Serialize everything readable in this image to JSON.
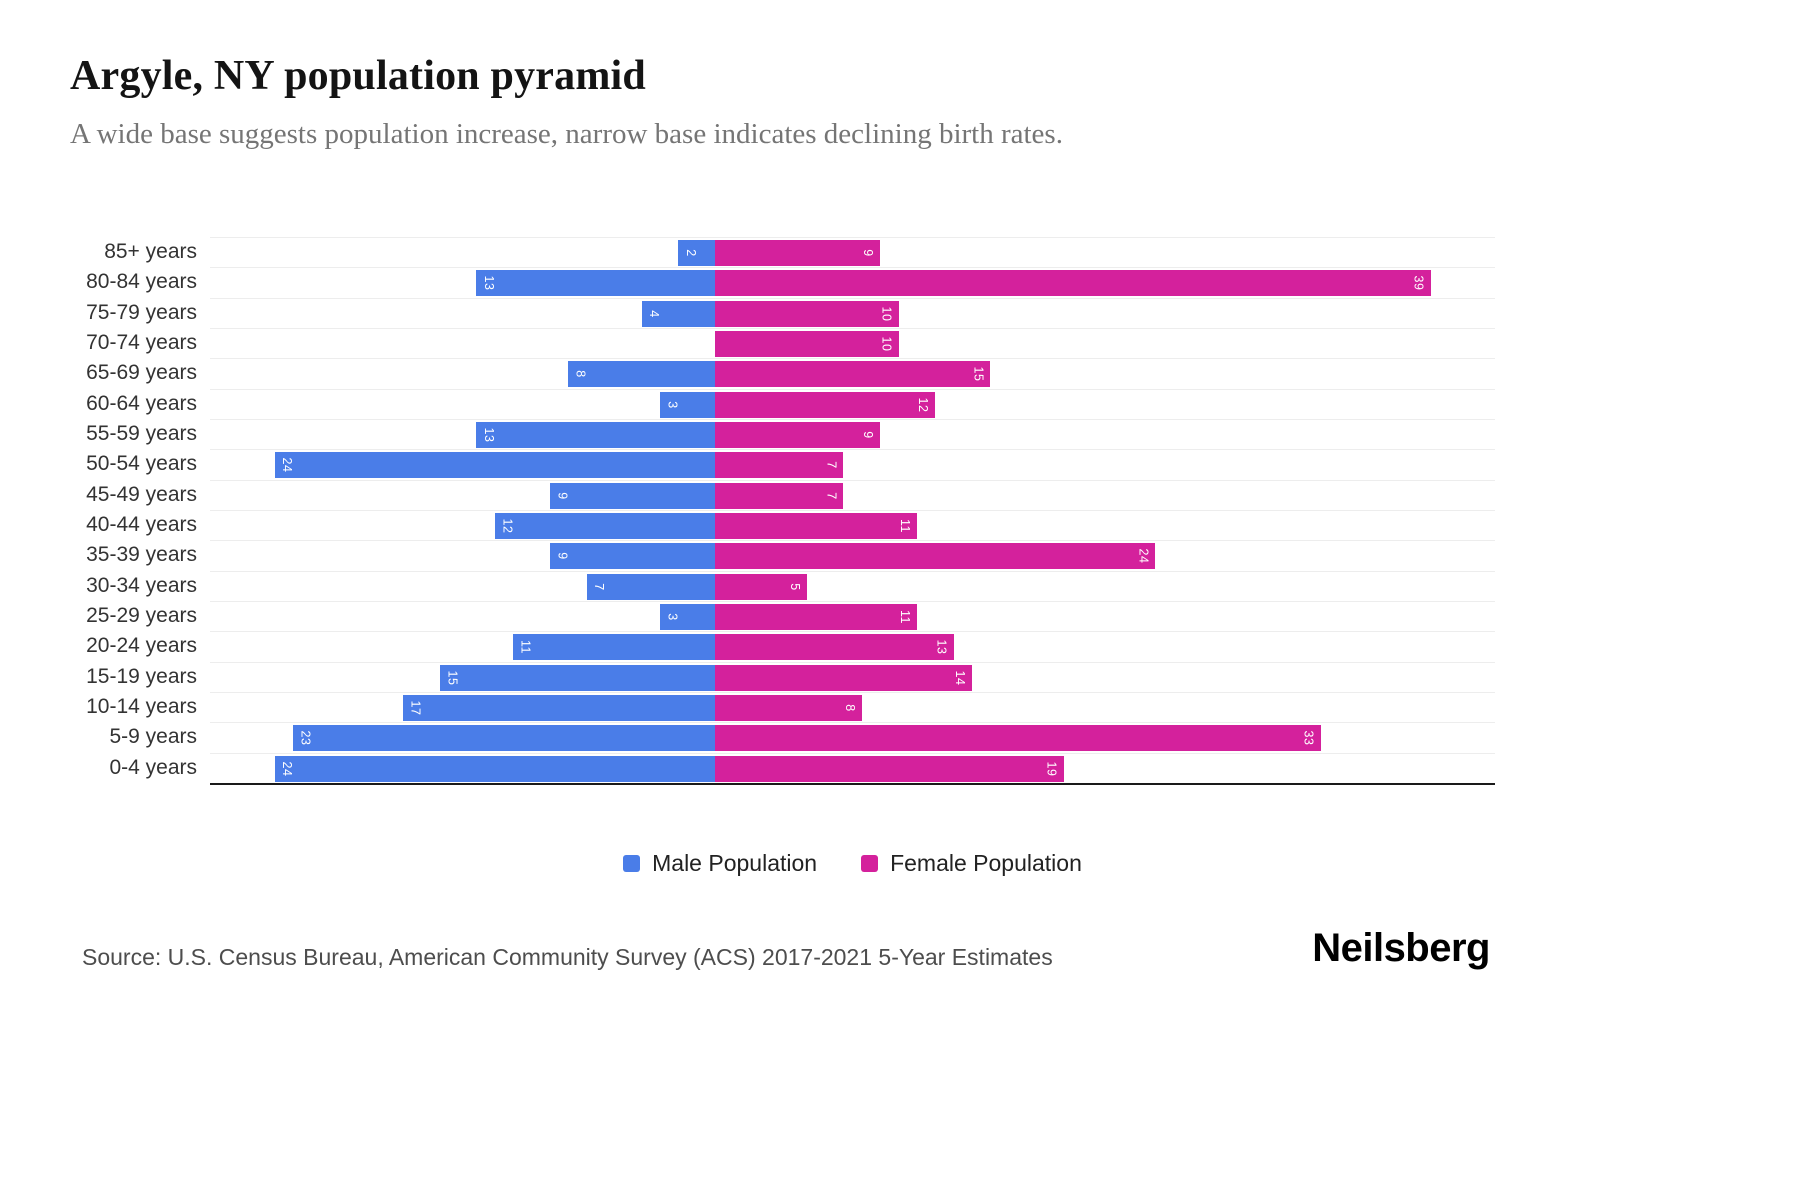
{
  "header": {
    "title": "Argyle, NY population pyramid",
    "subtitle": "A wide base suggests population increase, narrow base indicates declining birth rates."
  },
  "footer": {
    "source": "Source: U.S. Census Bureau, American Community Survey (ACS) 2017-2021 5-Year Estimates",
    "logo": "Neilsberg"
  },
  "chart_data": {
    "type": "bar",
    "variant": "population_pyramid",
    "title": "Argyle, NY population pyramid",
    "subtitle": "A wide base suggests population increase, narrow base indicates declining birth rates.",
    "categories": [
      "85+ years",
      "80-84 years",
      "75-79 years",
      "70-74 years",
      "65-69 years",
      "60-64 years",
      "55-59 years",
      "50-54 years",
      "45-49 years",
      "40-44 years",
      "35-39 years",
      "30-34 years",
      "25-29 years",
      "20-24 years",
      "15-19 years",
      "10-14 years",
      "5-9 years",
      "0-4 years"
    ],
    "series": [
      {
        "name": "Male Population",
        "color": "#4a7de8",
        "values": [
          2,
          13,
          4,
          0,
          8,
          3,
          13,
          24,
          9,
          12,
          9,
          7,
          3,
          11,
          15,
          17,
          23,
          24
        ]
      },
      {
        "name": "Female Population",
        "color": "#d4219c",
        "values": [
          9,
          39,
          10,
          10,
          15,
          12,
          9,
          7,
          7,
          11,
          24,
          5,
          11,
          13,
          14,
          8,
          33,
          19
        ]
      }
    ],
    "value_labels": "rotated 90deg, white, inside outer ends of bars",
    "axis": {
      "center_value": 0,
      "left_capacity": 27.5,
      "right_capacity": 42.5,
      "gridlines": "horizontal light gray at category boundaries",
      "baseline": "dark solid bottom axis"
    },
    "legend_position": "bottom-center"
  }
}
